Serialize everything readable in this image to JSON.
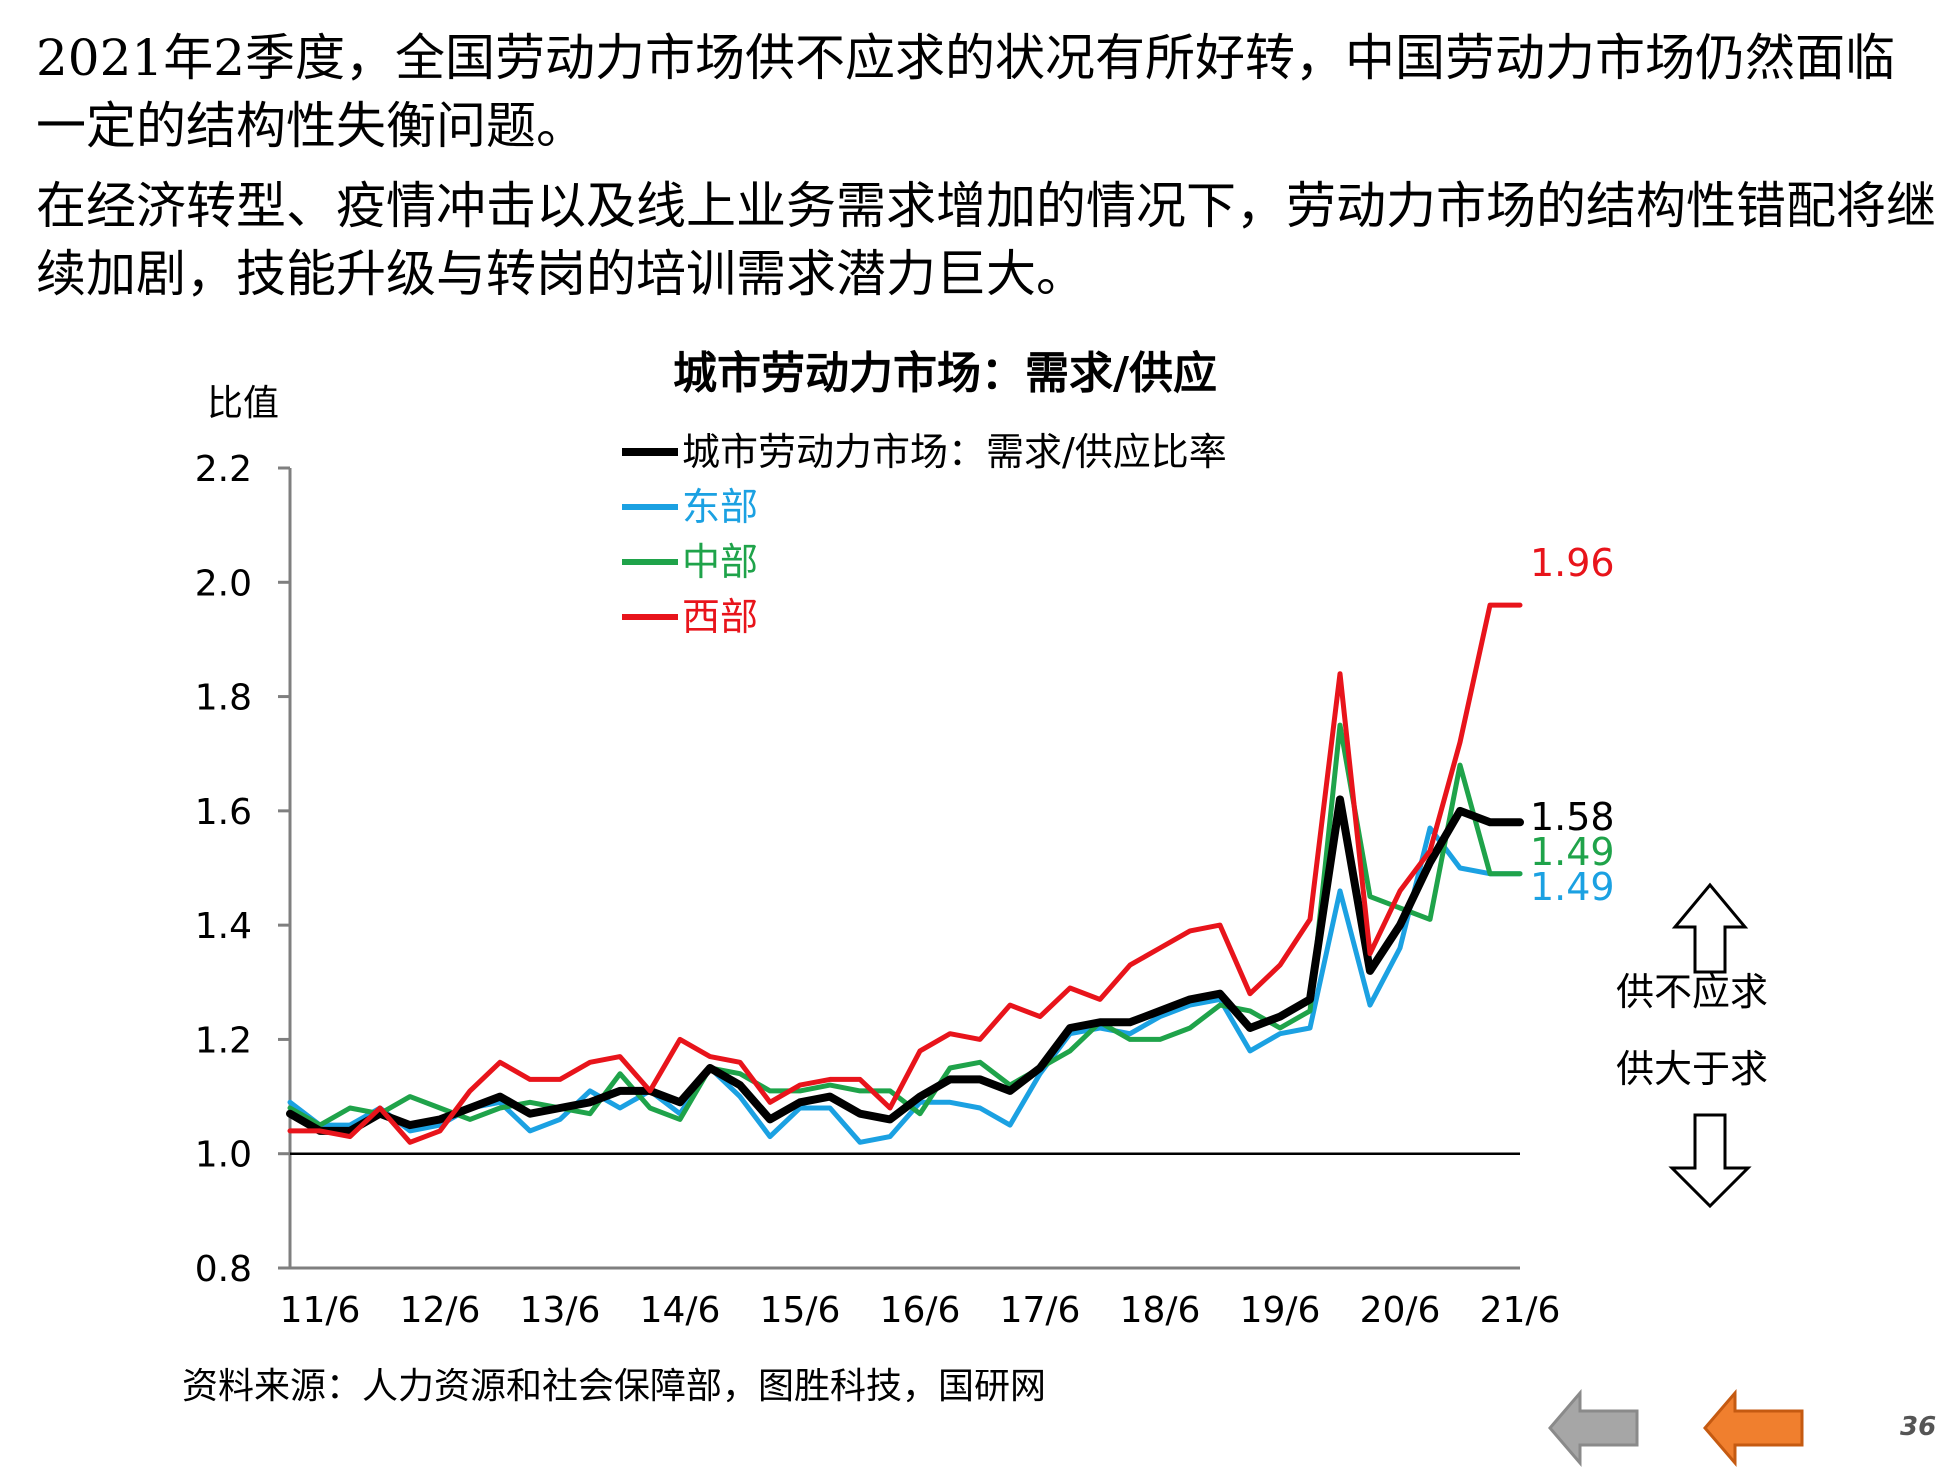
{
  "paragraphs": [
    "2021年2季度，全国劳动力市场供不应求的状况有所好转，中国劳动力市场仍然面临一定的结构性失衡问题。",
    "在经济转型、疫情冲击以及线上业务需求增加的情况下，劳动力市场的结构性错配将继续加剧，技能升级与转岗的培训需求潜力巨大。"
  ],
  "colors": {
    "national": "#000000",
    "east": "#1BA1E2",
    "central": "#1FA34A",
    "west": "#E8141B",
    "nav_gray": "#A6A6A6",
    "nav_orange": "#F07F2E"
  },
  "chart_data": {
    "type": "line",
    "title": "城市劳动力市场：需求/供应",
    "ylabel": "比值",
    "ylim": [
      0.8,
      2.2
    ],
    "yticks": [
      "0.8",
      "1.0",
      "1.2",
      "1.4",
      "1.6",
      "1.8",
      "2.0",
      "2.2"
    ],
    "xticks": [
      "11/6",
      "12/6",
      "13/6",
      "14/6",
      "15/6",
      "16/6",
      "17/6",
      "18/6",
      "19/6",
      "20/6",
      "21/6"
    ],
    "x": [
      "11/3",
      "11/6",
      "11/9",
      "11/12",
      "12/3",
      "12/6",
      "12/9",
      "12/12",
      "13/3",
      "13/6",
      "13/9",
      "13/12",
      "14/3",
      "14/6",
      "14/9",
      "14/12",
      "15/3",
      "15/6",
      "15/9",
      "15/12",
      "16/3",
      "16/6",
      "16/9",
      "16/12",
      "17/3",
      "17/6",
      "17/9",
      "17/12",
      "18/3",
      "18/6",
      "18/9",
      "18/12",
      "19/3",
      "19/6",
      "19/9",
      "19/12",
      "20/3",
      "20/6",
      "20/9",
      "20/12",
      "21/3",
      "21/6"
    ],
    "reference_line": 1.0,
    "legend_position": "top-left",
    "series": [
      {
        "name": "城市劳动力市场：需求/供应比率",
        "key": "national",
        "end_label": "1.58",
        "values": [
          1.07,
          1.04,
          1.04,
          1.07,
          1.05,
          1.06,
          1.08,
          1.1,
          1.07,
          1.08,
          1.09,
          1.11,
          1.11,
          1.09,
          1.15,
          1.12,
          1.06,
          1.09,
          1.1,
          1.07,
          1.06,
          1.1,
          1.13,
          1.13,
          1.11,
          1.15,
          1.22,
          1.23,
          1.23,
          1.25,
          1.27,
          1.28,
          1.22,
          1.24,
          1.27,
          1.62,
          1.32,
          1.4,
          1.51,
          1.6,
          1.58,
          1.58
        ]
      },
      {
        "name": "东部",
        "key": "east",
        "end_label": "1.49",
        "values": [
          1.09,
          1.05,
          1.05,
          1.08,
          1.04,
          1.05,
          1.08,
          1.09,
          1.04,
          1.06,
          1.11,
          1.08,
          1.11,
          1.07,
          1.15,
          1.1,
          1.03,
          1.08,
          1.08,
          1.02,
          1.03,
          1.09,
          1.09,
          1.08,
          1.05,
          1.14,
          1.21,
          1.22,
          1.21,
          1.24,
          1.26,
          1.27,
          1.18,
          1.21,
          1.22,
          1.46,
          1.26,
          1.36,
          1.57,
          1.5,
          1.49,
          1.49
        ]
      },
      {
        "name": "中部",
        "key": "central",
        "end_label": "1.49",
        "values": [
          1.08,
          1.05,
          1.08,
          1.07,
          1.1,
          1.08,
          1.06,
          1.08,
          1.09,
          1.08,
          1.07,
          1.14,
          1.08,
          1.06,
          1.15,
          1.14,
          1.11,
          1.11,
          1.12,
          1.11,
          1.11,
          1.07,
          1.15,
          1.16,
          1.12,
          1.15,
          1.18,
          1.23,
          1.2,
          1.2,
          1.22,
          1.26,
          1.25,
          1.22,
          1.25,
          1.75,
          1.45,
          1.43,
          1.41,
          1.68,
          1.49,
          1.49
        ]
      },
      {
        "name": "西部",
        "key": "west",
        "end_label": "1.96",
        "values": [
          1.04,
          1.04,
          1.03,
          1.08,
          1.02,
          1.04,
          1.11,
          1.16,
          1.13,
          1.13,
          1.16,
          1.17,
          1.11,
          1.2,
          1.17,
          1.16,
          1.09,
          1.12,
          1.13,
          1.13,
          1.08,
          1.18,
          1.21,
          1.2,
          1.26,
          1.24,
          1.29,
          1.27,
          1.33,
          1.36,
          1.39,
          1.4,
          1.28,
          1.33,
          1.41,
          1.84,
          1.35,
          1.46,
          1.53,
          1.72,
          1.96,
          1.96
        ]
      }
    ],
    "annotations": [
      "供不应求",
      "供大于求"
    ],
    "source": "资料来源：人力资源和社会保障部，图胜科技，国研网"
  },
  "page_number": "36"
}
